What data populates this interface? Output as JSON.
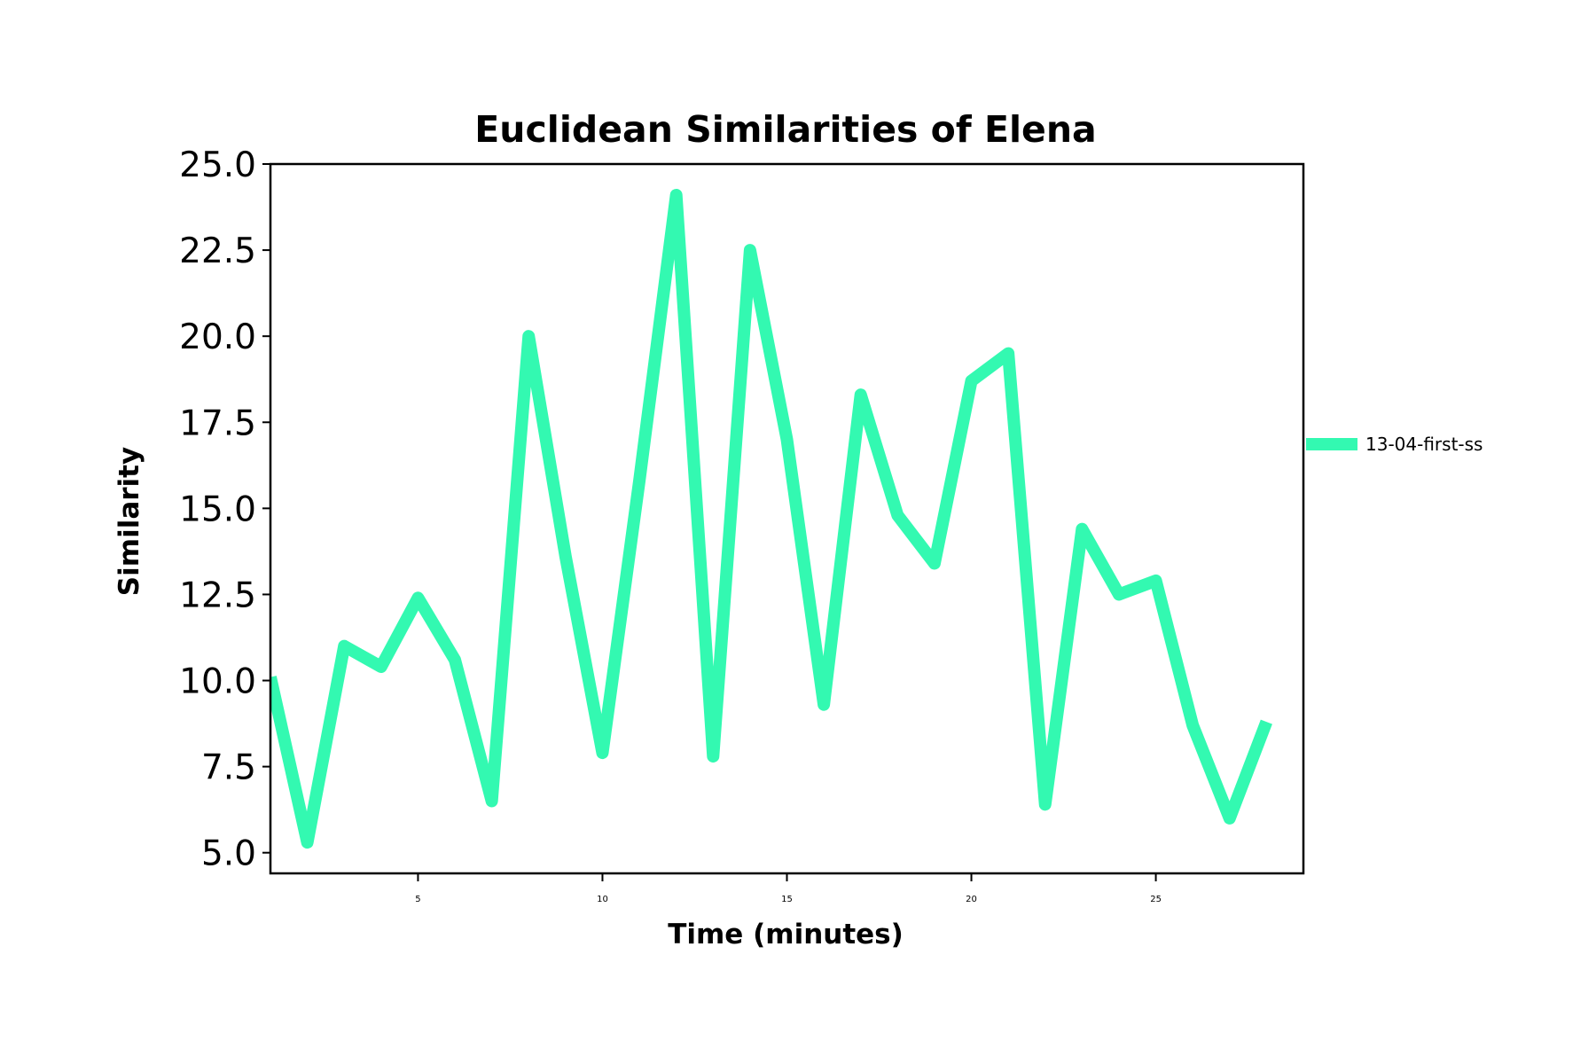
{
  "chart_data": {
    "type": "line",
    "title": "Euclidean Similarities of Elena",
    "xlabel": "Time (minutes)",
    "ylabel": "Similarity",
    "xlim": [
      1,
      29
    ],
    "ylim": [
      4.4,
      25.0
    ],
    "xticks": [
      5,
      10,
      15,
      20,
      25
    ],
    "xtick_labels": [
      "5",
      "10",
      "15",
      "20",
      "25"
    ],
    "yticks": [
      5.0,
      7.5,
      10.0,
      12.5,
      15.0,
      17.5,
      20.0,
      22.5,
      25.0
    ],
    "ytick_labels": [
      "5.0",
      "7.5",
      "10.0",
      "12.5",
      "15.0",
      "17.5",
      "20.0",
      "22.5",
      "25.0"
    ],
    "grid": false,
    "legend_position": "outside-right",
    "colors": {
      "series": "#33f9b1",
      "axes": "#000000"
    },
    "x": [
      1,
      2,
      3,
      4,
      5,
      6,
      7,
      8,
      9,
      10,
      11,
      12,
      13,
      14,
      15,
      16,
      17,
      18,
      19,
      20,
      21,
      22,
      23,
      24,
      25,
      26,
      27,
      28
    ],
    "series": [
      {
        "name": "13-04-first-ss",
        "values": [
          10.1,
          5.3,
          11.0,
          10.4,
          12.4,
          10.6,
          6.5,
          20.0,
          13.6,
          7.9,
          15.8,
          24.1,
          7.8,
          22.5,
          17.0,
          9.3,
          18.3,
          14.8,
          13.4,
          18.7,
          19.5,
          6.4,
          14.4,
          12.5,
          12.9,
          8.7,
          6.0,
          8.8
        ]
      }
    ]
  }
}
